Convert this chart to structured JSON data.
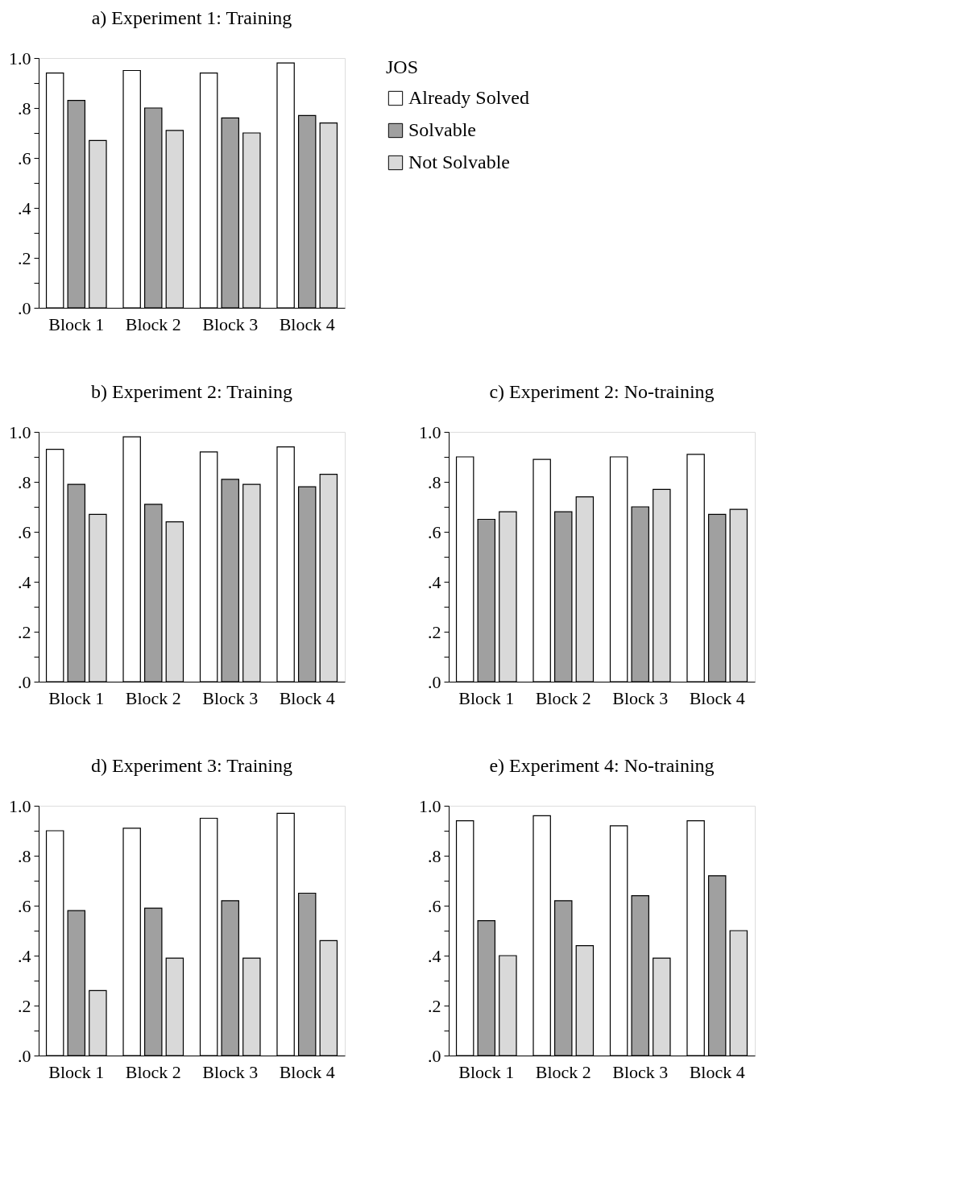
{
  "chart_data": [
    {
      "type": "bar",
      "title": "a)   Experiment 1: Training",
      "legend_title": "JOS",
      "legend": "right",
      "categories": [
        "Block 1",
        "Block 2",
        "Block 3",
        "Block 4"
      ],
      "ylim": [
        0,
        1
      ],
      "yticks": [
        {
          "value": 0,
          "label": ".0"
        },
        {
          "value": 0.1,
          "label": null
        },
        {
          "value": 0.2,
          "label": ".2"
        },
        {
          "value": 0.3,
          "label": null
        },
        {
          "value": 0.4,
          "label": ".4"
        },
        {
          "value": 0.5,
          "label": null
        },
        {
          "value": 0.6,
          "label": ".6"
        },
        {
          "value": 0.7,
          "label": null
        },
        {
          "value": 0.8,
          "label": ".8"
        },
        {
          "value": 0.9,
          "label": null
        },
        {
          "value": 1,
          "label": "1.0"
        }
      ],
      "grid": false,
      "series": [
        {
          "name": "Already Solved",
          "color": "#ffffff",
          "values": [
            0.94,
            0.95,
            0.94,
            0.98
          ]
        },
        {
          "name": "Solvable",
          "color": "#a0a0a0",
          "values": [
            0.83,
            0.8,
            0.76,
            0.77
          ]
        },
        {
          "name": "Not Solvable",
          "color": "#d9d9d9",
          "values": [
            0.67,
            0.71,
            0.7,
            0.74
          ]
        }
      ]
    },
    {
      "type": "bar",
      "title": "b)   Experiment 2: Training",
      "categories": [
        "Block 1",
        "Block 2",
        "Block 3",
        "Block 4"
      ],
      "ylim": [
        0,
        1
      ],
      "yticks": [
        {
          "value": 0,
          "label": ".0"
        },
        {
          "value": 0.1,
          "label": null
        },
        {
          "value": 0.2,
          "label": ".2"
        },
        {
          "value": 0.3,
          "label": null
        },
        {
          "value": 0.4,
          "label": ".4"
        },
        {
          "value": 0.5,
          "label": null
        },
        {
          "value": 0.6,
          "label": ".6"
        },
        {
          "value": 0.7,
          "label": null
        },
        {
          "value": 0.8,
          "label": ".8"
        },
        {
          "value": 0.9,
          "label": null
        },
        {
          "value": 1,
          "label": "1.0"
        }
      ],
      "grid": false,
      "series": [
        {
          "color": "#ffffff",
          "values": [
            0.93,
            0.98,
            0.92,
            0.94
          ]
        },
        {
          "color": "#a0a0a0",
          "values": [
            0.79,
            0.71,
            0.81,
            0.78
          ]
        },
        {
          "color": "#d9d9d9",
          "values": [
            0.67,
            0.64,
            0.79,
            0.83
          ]
        }
      ]
    },
    {
      "type": "bar",
      "title": "c)   Experiment 2: No-training",
      "categories": [
        "Block 1",
        "Block 2",
        "Block 3",
        "Block 4"
      ],
      "ylim": [
        0,
        1
      ],
      "yticks": [
        {
          "value": 0,
          "label": ".0"
        },
        {
          "value": 0.1,
          "label": null
        },
        {
          "value": 0.2,
          "label": ".2"
        },
        {
          "value": 0.3,
          "label": null
        },
        {
          "value": 0.4,
          "label": ".4"
        },
        {
          "value": 0.5,
          "label": null
        },
        {
          "value": 0.6,
          "label": ".6"
        },
        {
          "value": 0.7,
          "label": null
        },
        {
          "value": 0.8,
          "label": ".8"
        },
        {
          "value": 0.9,
          "label": null
        },
        {
          "value": 1,
          "label": "1.0"
        }
      ],
      "grid": false,
      "series": [
        {
          "color": "#ffffff",
          "values": [
            0.9,
            0.89,
            0.9,
            0.91
          ]
        },
        {
          "color": "#a0a0a0",
          "values": [
            0.65,
            0.68,
            0.7,
            0.67
          ]
        },
        {
          "color": "#d9d9d9",
          "values": [
            0.68,
            0.74,
            0.77,
            0.69
          ]
        }
      ]
    },
    {
      "type": "bar",
      "title": "d)   Experiment 3: Training",
      "categories": [
        "Block 1",
        "Block 2",
        "Block 3",
        "Block 4"
      ],
      "ylim": [
        0,
        1
      ],
      "yticks": [
        {
          "value": 0,
          "label": ".0"
        },
        {
          "value": 0.1,
          "label": null
        },
        {
          "value": 0.2,
          "label": ".2"
        },
        {
          "value": 0.3,
          "label": null
        },
        {
          "value": 0.4,
          "label": ".4"
        },
        {
          "value": 0.5,
          "label": null
        },
        {
          "value": 0.6,
          "label": ".6"
        },
        {
          "value": 0.7,
          "label": null
        },
        {
          "value": 0.8,
          "label": ".8"
        },
        {
          "value": 0.9,
          "label": null
        },
        {
          "value": 1,
          "label": "1.0"
        }
      ],
      "grid": false,
      "series": [
        {
          "color": "#ffffff",
          "values": [
            0.9,
            0.91,
            0.95,
            0.97
          ]
        },
        {
          "color": "#a0a0a0",
          "values": [
            0.58,
            0.59,
            0.62,
            0.65
          ]
        },
        {
          "color": "#d9d9d9",
          "values": [
            0.26,
            0.39,
            0.39,
            0.46
          ]
        }
      ]
    },
    {
      "type": "bar",
      "title": "e)   Experiment 4: No-training",
      "categories": [
        "Block 1",
        "Block 2",
        "Block 3",
        "Block 4"
      ],
      "ylim": [
        0,
        1
      ],
      "yticks": [
        {
          "value": 0,
          "label": ".0"
        },
        {
          "value": 0.1,
          "label": null
        },
        {
          "value": 0.2,
          "label": ".2"
        },
        {
          "value": 0.3,
          "label": null
        },
        {
          "value": 0.4,
          "label": ".4"
        },
        {
          "value": 0.5,
          "label": null
        },
        {
          "value": 0.6,
          "label": ".6"
        },
        {
          "value": 0.7,
          "label": null
        },
        {
          "value": 0.8,
          "label": ".8"
        },
        {
          "value": 0.9,
          "label": null
        },
        {
          "value": 1,
          "label": "1.0"
        }
      ],
      "grid": false,
      "series": [
        {
          "color": "#ffffff",
          "values": [
            0.94,
            0.96,
            0.92,
            0.94
          ]
        },
        {
          "color": "#a0a0a0",
          "values": [
            0.54,
            0.62,
            0.64,
            0.72
          ]
        },
        {
          "color": "#d9d9d9",
          "values": [
            0.4,
            0.44,
            0.39,
            0.5
          ]
        }
      ]
    }
  ]
}
